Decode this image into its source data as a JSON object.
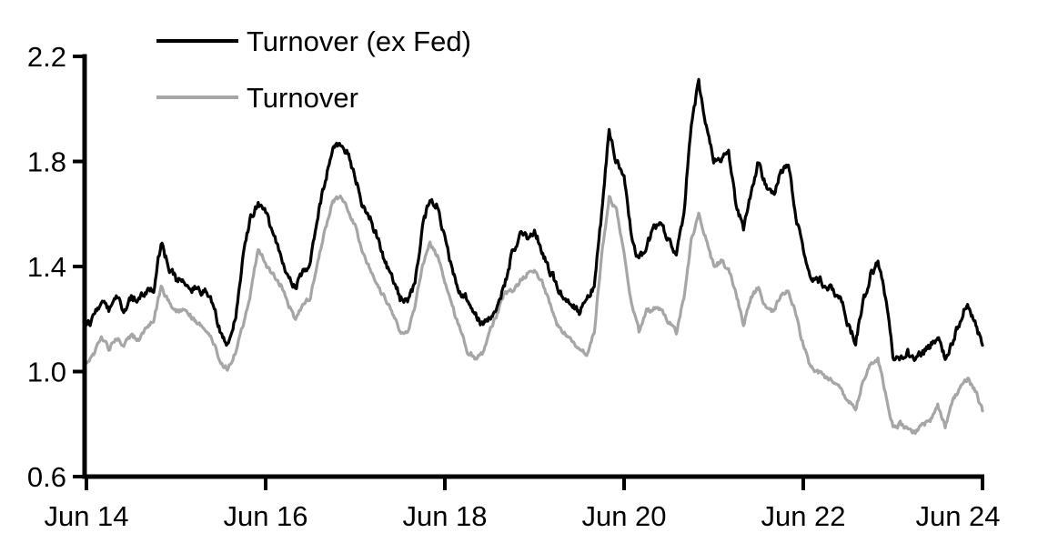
{
  "chart_data": {
    "type": "line",
    "title": "",
    "xlabel": "",
    "ylabel": "",
    "grid": false,
    "background_color": "#ffffff",
    "axis_color": "#000000",
    "ylim": [
      0.6,
      2.2
    ],
    "y_tick_labels": [
      "2.2",
      "1.8",
      "1.4",
      "1.0",
      "0.6"
    ],
    "y_tick_values": [
      2.2,
      1.8,
      1.4,
      1.0,
      0.6
    ],
    "x_tick_labels": [
      "Jun 14",
      "Jun 16",
      "Jun 18",
      "Jun 20",
      "Jun 22",
      "Jun 24"
    ],
    "x_range": [
      "Jun 2014",
      "Jun 2024"
    ],
    "sampling": "monthly",
    "legend": {
      "position": "top-left-inside",
      "items": [
        {
          "label": "Turnover (ex Fed)",
          "color": "#000000"
        },
        {
          "label": "Turnover",
          "color": "#a6a6a6"
        }
      ]
    },
    "series": [
      {
        "name": "Turnover (ex Fed)",
        "color": "#000000",
        "values": [
          1.17,
          1.21,
          1.26,
          1.23,
          1.27,
          1.24,
          1.28,
          1.28,
          1.3,
          1.31,
          1.49,
          1.4,
          1.35,
          1.35,
          1.32,
          1.31,
          1.3,
          1.26,
          1.14,
          1.11,
          1.22,
          1.44,
          1.59,
          1.64,
          1.6,
          1.53,
          1.45,
          1.36,
          1.32,
          1.38,
          1.41,
          1.6,
          1.73,
          1.84,
          1.87,
          1.83,
          1.74,
          1.63,
          1.58,
          1.51,
          1.42,
          1.36,
          1.28,
          1.26,
          1.33,
          1.55,
          1.66,
          1.63,
          1.5,
          1.38,
          1.31,
          1.28,
          1.23,
          1.18,
          1.2,
          1.25,
          1.33,
          1.45,
          1.52,
          1.51,
          1.54,
          1.46,
          1.39,
          1.33,
          1.28,
          1.26,
          1.23,
          1.26,
          1.33,
          1.6,
          1.92,
          1.8,
          1.74,
          1.52,
          1.42,
          1.48,
          1.55,
          1.56,
          1.5,
          1.44,
          1.6,
          1.95,
          2.1,
          1.93,
          1.81,
          1.79,
          1.85,
          1.62,
          1.55,
          1.68,
          1.8,
          1.7,
          1.67,
          1.76,
          1.79,
          1.6,
          1.45,
          1.37,
          1.35,
          1.33,
          1.31,
          1.28,
          1.18,
          1.11,
          1.26,
          1.37,
          1.42,
          1.28,
          1.06,
          1.04,
          1.07,
          1.05,
          1.07,
          1.1,
          1.13,
          1.05,
          1.12,
          1.19,
          1.27,
          1.18,
          1.1
        ]
      },
      {
        "name": "Turnover",
        "color": "#a6a6a6",
        "values": [
          1.03,
          1.07,
          1.12,
          1.09,
          1.13,
          1.1,
          1.14,
          1.12,
          1.16,
          1.2,
          1.32,
          1.27,
          1.23,
          1.24,
          1.21,
          1.18,
          1.16,
          1.11,
          1.03,
          1.01,
          1.08,
          1.18,
          1.3,
          1.47,
          1.41,
          1.37,
          1.33,
          1.26,
          1.2,
          1.26,
          1.28,
          1.43,
          1.54,
          1.65,
          1.66,
          1.62,
          1.55,
          1.45,
          1.39,
          1.32,
          1.28,
          1.22,
          1.15,
          1.14,
          1.25,
          1.4,
          1.49,
          1.44,
          1.34,
          1.25,
          1.16,
          1.08,
          1.05,
          1.07,
          1.15,
          1.22,
          1.3,
          1.31,
          1.34,
          1.37,
          1.38,
          1.34,
          1.26,
          1.18,
          1.15,
          1.12,
          1.09,
          1.06,
          1.15,
          1.44,
          1.66,
          1.62,
          1.45,
          1.25,
          1.15,
          1.23,
          1.24,
          1.23,
          1.19,
          1.15,
          1.28,
          1.5,
          1.61,
          1.5,
          1.4,
          1.42,
          1.39,
          1.3,
          1.18,
          1.28,
          1.32,
          1.24,
          1.23,
          1.29,
          1.31,
          1.22,
          1.1,
          1.01,
          1.0,
          0.98,
          0.96,
          0.93,
          0.89,
          0.86,
          0.96,
          1.03,
          1.05,
          0.92,
          0.79,
          0.8,
          0.78,
          0.77,
          0.8,
          0.81,
          0.87,
          0.79,
          0.89,
          0.94,
          0.97,
          0.93,
          0.85
        ]
      }
    ],
    "render_hints": {
      "noise_amp": [
        0.013,
        0.008
      ],
      "noise_persistence": 0.5,
      "noise_seed": 20140614,
      "subdivisions_per_month": 8,
      "stroke_width": 3.2
    }
  }
}
